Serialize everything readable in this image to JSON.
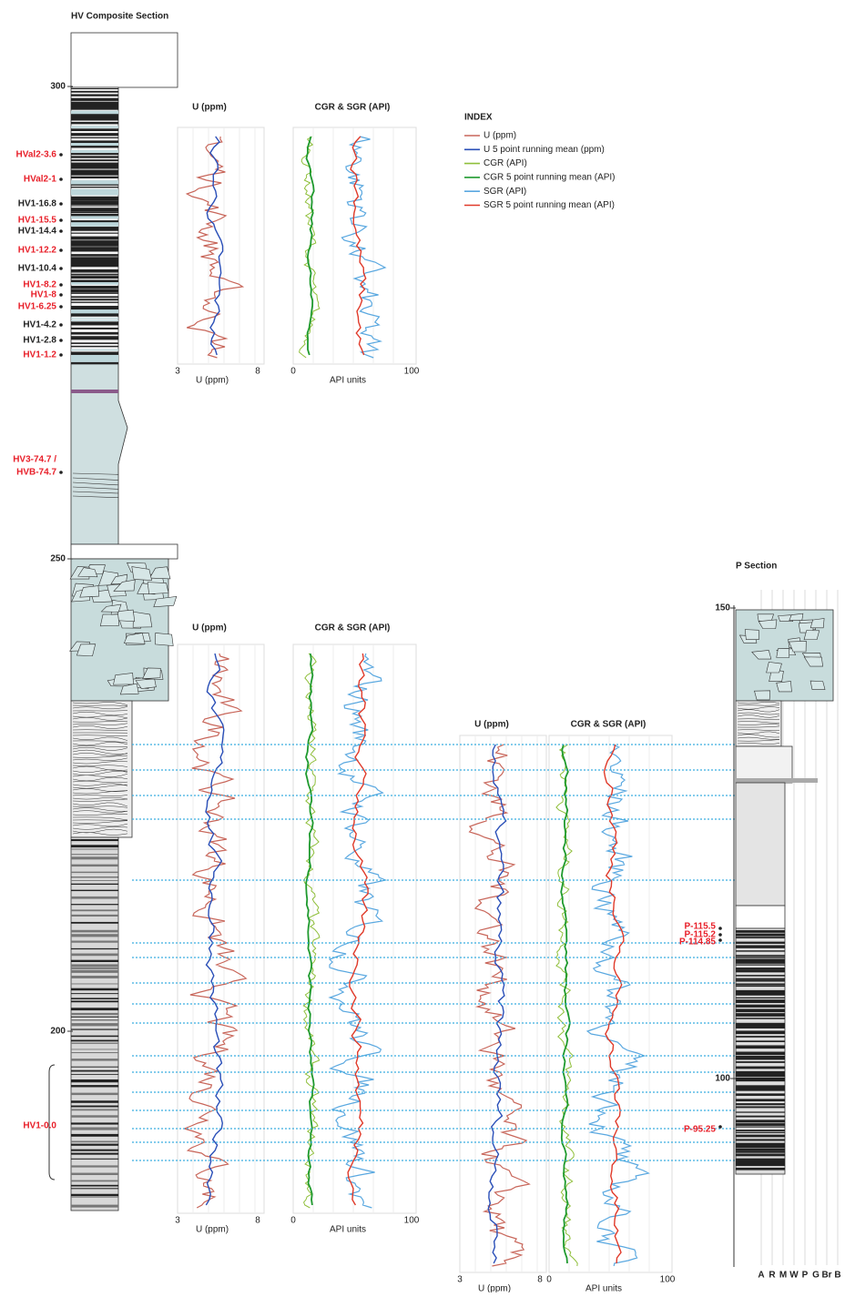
{
  "figure": {
    "title": "HV Composite Section",
    "composite_depths": [
      300,
      250,
      200
    ],
    "samples": [
      {
        "label": "HVal2-3.6",
        "color": "#e8202a"
      },
      {
        "label": "HVal2-1",
        "color": "#e8202a"
      },
      {
        "label": "HV1-16.8",
        "color": "#222222"
      },
      {
        "label": "HV1-15.5",
        "color": "#e8202a"
      },
      {
        "label": "HV1-14.4",
        "color": "#222222"
      },
      {
        "label": "HV1-12.2",
        "color": "#e8202a"
      },
      {
        "label": "HV1-10.4",
        "color": "#222222"
      },
      {
        "label": "HV1-8.2",
        "color": "#e8202a"
      },
      {
        "label": "HV1-8",
        "color": "#e8202a"
      },
      {
        "label": "HV1-6.25",
        "color": "#e8202a"
      },
      {
        "label": "HV1-4.2",
        "color": "#222222"
      },
      {
        "label": "HV1-2.8",
        "color": "#222222"
      },
      {
        "label": "HV1-1.2",
        "color": "#e8202a"
      },
      {
        "label": "HV3-74.7 /",
        "color": "#e8202a"
      },
      {
        "label": "HVB-74.7",
        "color": "#e8202a"
      },
      {
        "label": "HV1-0.0",
        "color": "#e8202a"
      }
    ],
    "plots": [
      {
        "u_title": "U (ppm)",
        "api_title": "CGR & SGR (API)",
        "u_ticks": [
          "3",
          "8"
        ],
        "u_axis": "U (ppm)",
        "api_ticks": [
          "0",
          "100"
        ],
        "api_axis": "API units"
      },
      {
        "u_title": "U (ppm)",
        "api_title": "CGR & SGR (API)",
        "u_ticks": [
          "3",
          "8"
        ],
        "u_axis": "U (ppm)",
        "api_ticks": [
          "0",
          "100"
        ],
        "api_axis": "API units"
      },
      {
        "u_title": "U (ppm)",
        "api_title": "CGR & SGR (API)",
        "u_ticks": [
          "3",
          "8"
        ],
        "u_axis": "U (ppm)",
        "api_ticks": [
          "0",
          "100"
        ],
        "api_axis": "API units"
      }
    ],
    "index": {
      "title": "INDEX",
      "entries": [
        {
          "label": "U (ppm)",
          "color": "#c8665a"
        },
        {
          "label": "U 5 point running mean (ppm)",
          "color": "#2a4fb8"
        },
        {
          "label": "CGR (API)",
          "color": "#8fbf3a"
        },
        {
          "label": "CGR 5 point running mean (API)",
          "color": "#1f9a2e"
        },
        {
          "label": "SGR (API)",
          "color": "#5aa8e0"
        },
        {
          "label": "SGR 5 point running mean (API)",
          "color": "#e03a2a"
        }
      ]
    },
    "p_section": {
      "title": "P Section",
      "depths": [
        150,
        100
      ],
      "samples": [
        "P-115.5",
        "P-115.2",
        "P-114.85",
        "P-95.25"
      ],
      "columns": [
        "A",
        "R",
        "M",
        "W",
        "P",
        "G",
        "Br",
        "B"
      ]
    }
  }
}
